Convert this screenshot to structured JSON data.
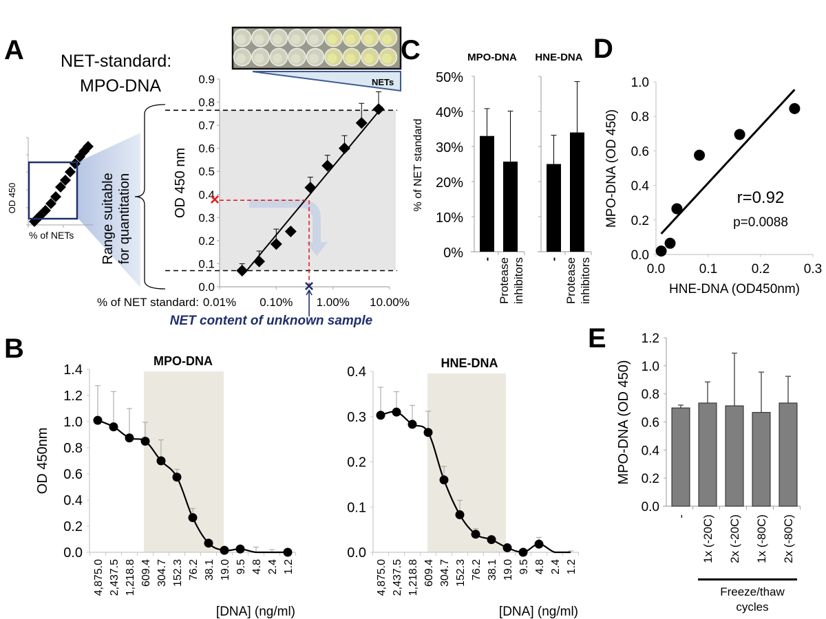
{
  "panels": {
    "A": "A",
    "B": "B",
    "C": "C",
    "D": "D",
    "E": "E"
  },
  "colors": {
    "shade_gray": "#e6e6e6",
    "shade_beige": "#ebe8e0",
    "navy": "#1f2f6b",
    "red": "#e02020",
    "blue_fill": "#c3cfe6",
    "bar_gray": "#7f7f7f",
    "axis_gray": "#a6a6a6"
  },
  "chart_data": [
    {
      "id": "A",
      "type": "scatter",
      "title": "NET-standard: MPO-DNA",
      "title_line1": "NET-standard:",
      "title_line2": "MPO-DNA",
      "xlabel": "% of NET standard:",
      "ylabel": "OD 450 nm",
      "xscale": "log",
      "xlim": [
        0.01,
        10
      ],
      "ylim": [
        0,
        0.9
      ],
      "xticks": [
        "0.01%",
        "0.10%",
        "1.00%",
        "10.00%"
      ],
      "xtick_values": [
        0.01,
        0.1,
        1,
        10
      ],
      "yticks": [
        "0.0",
        "0.1",
        "0.2",
        "0.3",
        "0.4",
        "0.5",
        "0.6",
        "0.7",
        "0.8",
        "0.9"
      ],
      "points": [
        {
          "x": 0.025,
          "y": 0.07,
          "err": 0.1
        },
        {
          "x": 0.05,
          "y": 0.11,
          "err": 0.155
        },
        {
          "x": 0.1,
          "y": 0.185,
          "err": 0.25
        },
        {
          "x": 0.18,
          "y": 0.24,
          "err": 0.24
        },
        {
          "x": 0.4,
          "y": 0.43,
          "err": 0.475
        },
        {
          "x": 0.8,
          "y": 0.525,
          "err": 0.57
        },
        {
          "x": 1.6,
          "y": 0.6,
          "err": 0.655
        },
        {
          "x": 3.2,
          "y": 0.71,
          "err": 0.795
        },
        {
          "x": 6.4,
          "y": 0.77,
          "err": 0.845
        }
      ],
      "fit_line": {
        "x": [
          0.03,
          7.5
        ],
        "y": [
          0.07,
          0.78
        ]
      },
      "quant_range": [
        0.07,
        0.765
      ],
      "unknown_sample": {
        "od": 0.375,
        "pct": 0.38
      },
      "annotations": {
        "range_label_1": "Range suitable",
        "range_label_2": "for quantitation",
        "unknown_label": "NET content of unknown sample",
        "wedge_label": "NETs",
        "inset_xlabel": "% of NETs",
        "inset_ylabel": "OD 450"
      }
    },
    {
      "id": "B1",
      "type": "line",
      "title": "MPO-DNA",
      "xlabel": "[DNA] (ng/ml)",
      "ylabel": "OD 450nm",
      "ylim": [
        0,
        1.4
      ],
      "yticks": [
        "0.0",
        "0.2",
        "0.4",
        "0.6",
        "0.8",
        "1.0",
        "1.2",
        "1.4"
      ],
      "categories": [
        "4,875.0",
        "2,437.5",
        "1,218.8",
        "609.4",
        "304.7",
        "152.3",
        "76.2",
        "38.1",
        "19.0",
        "9.5",
        "4.8",
        "2.4",
        "1.2"
      ],
      "values": [
        1.01,
        0.96,
        0.875,
        0.85,
        0.7,
        0.575,
        0.265,
        0.07,
        0.015,
        0.025,
        0.0,
        0.0,
        0.0
      ],
      "markers": [
        true,
        true,
        true,
        true,
        true,
        true,
        true,
        true,
        true,
        true,
        false,
        false,
        true
      ],
      "errors_upper": [
        1.275,
        1.23,
        1.1,
        0.995,
        0.86,
        0.635,
        0.335,
        0.07,
        0.015,
        0.025,
        0.04,
        0.02,
        0.0
      ],
      "shaded_range": [
        3,
        8
      ]
    },
    {
      "id": "B2",
      "type": "line",
      "title": "HNE-DNA",
      "xlabel": "[DNA] (ng/ml)",
      "ylabel": "",
      "ylim": [
        0,
        0.4
      ],
      "yticks": [
        "0.0",
        "0.1",
        "0.2",
        "0.3",
        "0.4"
      ],
      "categories": [
        "4,875.0",
        "2,437.5",
        "1,218.8",
        "609.4",
        "304.7",
        "152.3",
        "76.2",
        "38.1",
        "19.0",
        "9.5",
        "4.8",
        "2.4",
        "1.2"
      ],
      "values": [
        0.303,
        0.31,
        0.283,
        0.265,
        0.16,
        0.083,
        0.04,
        0.028,
        0.01,
        0.0,
        0.018,
        0.0,
        0.0
      ],
      "markers": [
        true,
        true,
        true,
        true,
        true,
        true,
        true,
        true,
        true,
        true,
        true,
        false,
        false
      ],
      "errors_upper": [
        0.365,
        0.355,
        0.325,
        0.312,
        0.19,
        0.115,
        0.052,
        0.028,
        0.01,
        0.0,
        0.033,
        0.0,
        0.003
      ],
      "shaded_range": [
        3,
        8
      ]
    },
    {
      "id": "C",
      "type": "bar",
      "ylabel": "% of NET standard",
      "ylim": [
        0,
        50
      ],
      "yticks": [
        "0%",
        "10%",
        "20%",
        "30%",
        "40%",
        "50%"
      ],
      "groups": [
        {
          "title": "MPO-DNA",
          "categories": [
            "-",
            "Protease inhibitors"
          ],
          "values": [
            33,
            25.7
          ],
          "errors_upper": [
            40.8,
            40.1
          ]
        },
        {
          "title": "HNE-DNA",
          "categories": [
            "-",
            "Protease inhibitors"
          ],
          "values": [
            25,
            34
          ],
          "errors_upper": [
            33.2,
            48.5
          ]
        }
      ],
      "category_line1": [
        "-",
        "Protease"
      ],
      "category_line2": [
        "",
        "inhibitors"
      ]
    },
    {
      "id": "D",
      "type": "scatter",
      "xlabel": "HNE-DNA (OD450nm)",
      "ylabel": "MPO-DNA (OD 450)",
      "xlim": [
        0,
        0.3
      ],
      "ylim": [
        0,
        1.0
      ],
      "xticks": [
        "0.0",
        "0.1",
        "0.2",
        "0.3"
      ],
      "yticks": [
        "0.0",
        "0.2",
        "0.4",
        "0.6",
        "0.8",
        "1.0"
      ],
      "points": [
        {
          "x": 0.01,
          "y": 0.02
        },
        {
          "x": 0.027,
          "y": 0.065
        },
        {
          "x": 0.04,
          "y": 0.265
        },
        {
          "x": 0.083,
          "y": 0.575
        },
        {
          "x": 0.16,
          "y": 0.695
        },
        {
          "x": 0.265,
          "y": 0.845
        }
      ],
      "fit_line": {
        "x": [
          0.01,
          0.265
        ],
        "y": [
          0.12,
          0.955
        ]
      },
      "annotations": {
        "r": "r=0.92",
        "p": "p=0.0088"
      }
    },
    {
      "id": "E",
      "type": "bar",
      "ylabel": "MPO-DNA (OD 450)",
      "ylim": [
        0,
        1.2
      ],
      "yticks": [
        "0.0",
        "0.2",
        "0.4",
        "0.6",
        "0.8",
        "1.0",
        "1.2"
      ],
      "categories": [
        "-",
        "1x (-20C)",
        "2x (-20C)",
        "1x (-80C)",
        "2x (-80C)"
      ],
      "values": [
        0.7,
        0.735,
        0.715,
        0.668,
        0.735
      ],
      "errors_upper": [
        0.72,
        0.885,
        1.09,
        0.955,
        0.925
      ],
      "group_label_1": "Freeze/thaw",
      "group_label_2": "cycles"
    }
  ]
}
